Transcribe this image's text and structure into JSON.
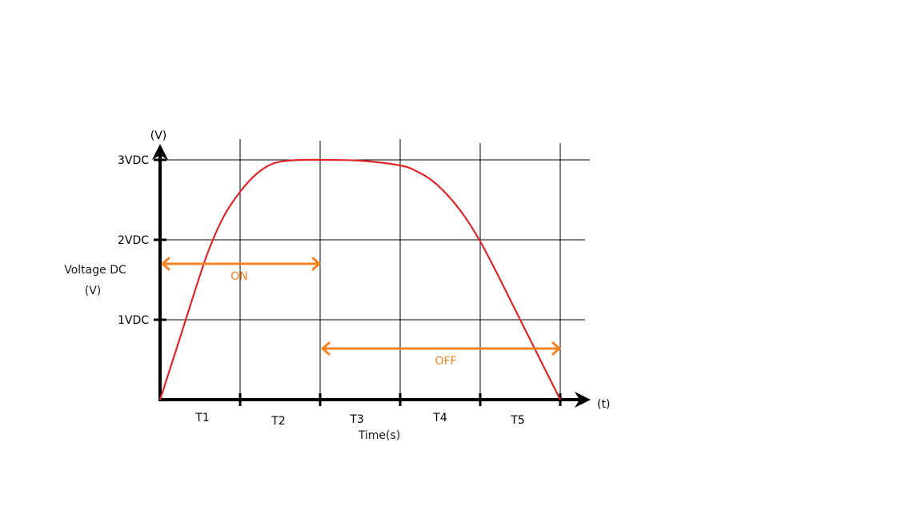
{
  "chart_data": {
    "type": "line",
    "y_axis_label": "(V)",
    "x_axis_label": "(t)",
    "y_title_line1": "Voltage DC",
    "y_title_line2": "(V)",
    "x_title": "Time(s)",
    "y_ticks": [
      {
        "value": 1,
        "label": "1VDC"
      },
      {
        "value": 2,
        "label": "2VDC"
      },
      {
        "value": 3,
        "label": "3VDC"
      }
    ],
    "x_intervals": [
      "T1",
      "T2",
      "T3",
      "T4",
      "T5"
    ],
    "xlim": [
      0,
      5
    ],
    "ylim": [
      0,
      3
    ],
    "grid": true,
    "series": [
      {
        "x": [
          0,
          0.2,
          0.4,
          0.6,
          0.8,
          1.0,
          1.2,
          1.4,
          1.6,
          1.8,
          2.0,
          2.5,
          3.0,
          3.2,
          3.4,
          3.6,
          3.8,
          4.0,
          4.2,
          4.4,
          4.6,
          4.8,
          5.0
        ],
        "y": [
          0,
          0.62,
          1.25,
          1.85,
          2.3,
          2.6,
          2.82,
          2.95,
          2.99,
          3.0,
          3.0,
          2.99,
          2.93,
          2.86,
          2.74,
          2.55,
          2.3,
          1.98,
          1.6,
          1.2,
          0.8,
          0.4,
          0
        ]
      }
    ],
    "annotations": [
      {
        "text": "ON",
        "x_start": 0,
        "x_end": 2,
        "y": 1.7
      },
      {
        "text": "OFF",
        "x_start": 2,
        "x_end": 5,
        "y": 0.64
      }
    ]
  },
  "colors": {
    "curve": "#e0262b",
    "arrow": "#f5821f",
    "axis": "#000000",
    "grid": "#000000"
  }
}
